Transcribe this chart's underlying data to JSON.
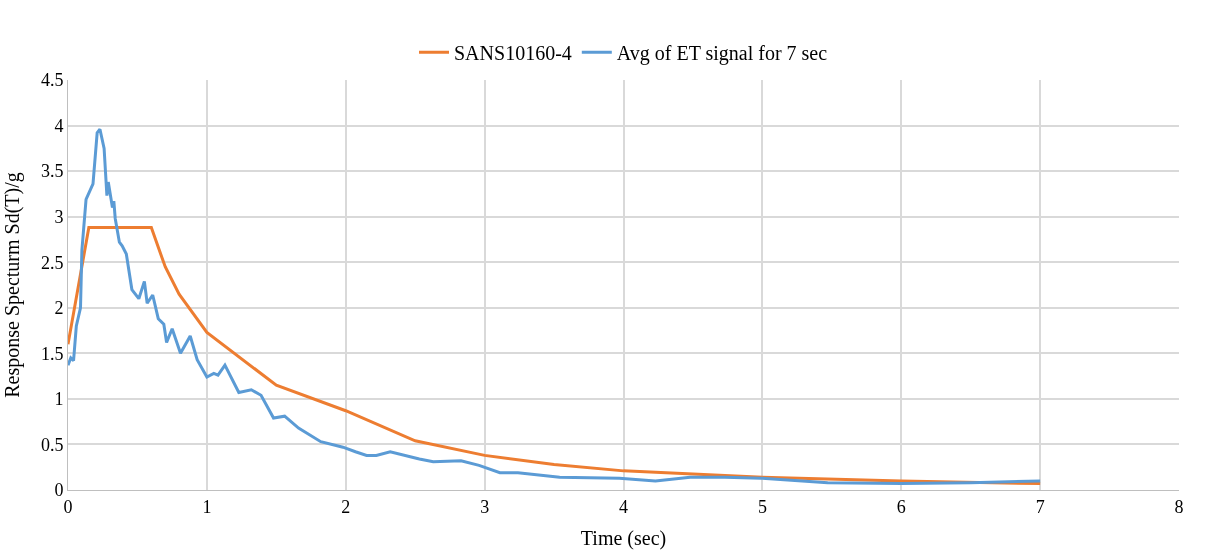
{
  "chart_data": {
    "type": "line",
    "xlabel": "Time (sec)",
    "ylabel": "Response Specturm Sd(T)/g",
    "xlim": [
      0,
      8
    ],
    "xticks": [
      0,
      1,
      2,
      3,
      4,
      5,
      6,
      7,
      8
    ],
    "ylim": [
      0,
      4.5
    ],
    "yticks": [
      0,
      0.5,
      1,
      1.5,
      2,
      2.5,
      3,
      3.5,
      4,
      4.5
    ],
    "grid": true,
    "legend": "top",
    "line_style": "solid",
    "marker": "none",
    "series": [
      {
        "name": "SANS10160-4",
        "color": "#ed7d31",
        "x": [
          0,
          0.15,
          0.6,
          0.7,
          0.8,
          1.0,
          1.5,
          2.0,
          2.5,
          3.0,
          3.5,
          4.0,
          5.0,
          6.0,
          7.0
        ],
        "values": [
          1.6,
          2.88,
          2.88,
          2.45,
          2.15,
          1.73,
          1.15,
          0.87,
          0.54,
          0.38,
          0.28,
          0.21,
          0.14,
          0.1,
          0.07
        ]
      },
      {
        "name": "Avg of ET signal for 7 sec",
        "color": "#5b9bd5",
        "x": [
          0,
          0.02,
          0.04,
          0.06,
          0.09,
          0.1,
          0.13,
          0.18,
          0.21,
          0.23,
          0.26,
          0.27,
          0.28,
          0.29,
          0.32,
          0.33,
          0.34,
          0.37,
          0.39,
          0.42,
          0.46,
          0.51,
          0.55,
          0.57,
          0.61,
          0.65,
          0.69,
          0.71,
          0.75,
          0.81,
          0.88,
          0.93,
          1.0,
          1.05,
          1.08,
          1.13,
          1.23,
          1.32,
          1.39,
          1.48,
          1.56,
          1.66,
          1.82,
          1.98,
          2.07,
          2.15,
          2.22,
          2.32,
          2.53,
          2.63,
          2.83,
          2.96,
          3.11,
          3.24,
          3.54,
          3.97,
          4.23,
          4.48,
          4.73,
          4.99,
          5.47,
          6.0,
          6.5,
          7.0
        ],
        "values": [
          1.37,
          1.45,
          1.42,
          1.8,
          2.0,
          2.63,
          3.19,
          3.36,
          3.92,
          3.96,
          3.75,
          3.49,
          3.23,
          3.38,
          3.1,
          3.17,
          2.98,
          2.72,
          2.68,
          2.59,
          2.2,
          2.1,
          2.29,
          2.05,
          2.14,
          1.88,
          1.82,
          1.62,
          1.77,
          1.5,
          1.69,
          1.43,
          1.24,
          1.28,
          1.26,
          1.37,
          1.07,
          1.1,
          1.04,
          0.79,
          0.81,
          0.68,
          0.53,
          0.47,
          0.42,
          0.38,
          0.38,
          0.42,
          0.34,
          0.31,
          0.32,
          0.27,
          0.19,
          0.19,
          0.14,
          0.13,
          0.1,
          0.14,
          0.14,
          0.13,
          0.08,
          0.07,
          0.08,
          0.1
        ]
      }
    ]
  }
}
